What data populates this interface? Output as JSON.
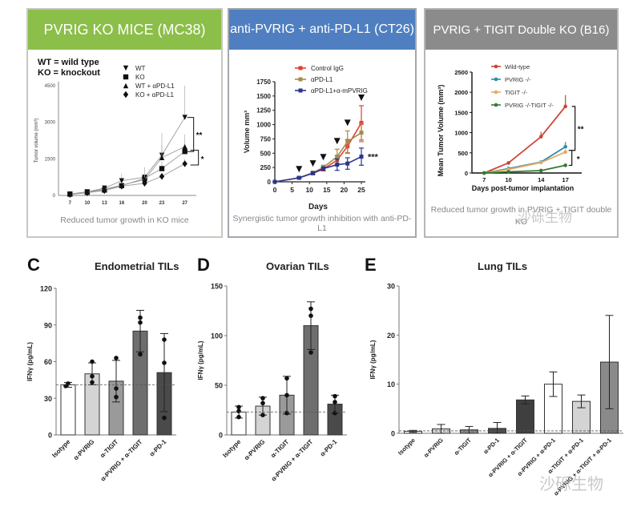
{
  "panels": {
    "p1": {
      "header": "PVRIG KO MICE (MC38)",
      "header_color": "#8cbe4a",
      "note_line1": "WT = wild type",
      "note_line2": "KO = knockout",
      "caption": "Reduced tumor growth in KO mice"
    },
    "p2": {
      "header": "anti-PVRIG + anti-PD-L1 (CT26)",
      "header_color": "#4f7fc0",
      "caption": "Synergistic tumor growth inhibition with anti-PD-L1"
    },
    "p3": {
      "header": "PVRIG + TIGIT Double KO (B16)",
      "header_color": "#8b8b8b",
      "caption_line1": "Reduced tumor growth in PVRIG + TIGIT double",
      "caption_line2": "KO"
    },
    "C": {
      "letter": "C",
      "title": "Endometrial TILs"
    },
    "D": {
      "letter": "D",
      "title": "Ovarian TILs"
    },
    "E": {
      "letter": "E",
      "title": "Lung TILs"
    }
  },
  "watermark": "沙砾生物",
  "chart_data": [
    {
      "id": "mc38",
      "type": "line",
      "title": "PVRIG KO MICE (MC38)",
      "xlabel": "Days post-tumor implantation",
      "ylabel": "Tumor volume (mm³)",
      "x": [
        7,
        10,
        13,
        16,
        20,
        23,
        27
      ],
      "xticks": [
        "7",
        "10",
        "13",
        "16",
        "20",
        "23",
        "27"
      ],
      "yticks": [
        "0",
        "1500",
        "3000",
        "4500"
      ],
      "ylim": [
        0,
        4500
      ],
      "series": [
        {
          "name": "WT",
          "marker": "▼",
          "values": [
            60,
            150,
            300,
            600,
            750,
            1650,
            3200
          ],
          "err": [
            30,
            60,
            80,
            300,
            400,
            900,
            1300
          ]
        },
        {
          "name": "KO",
          "marker": "■",
          "values": [
            50,
            130,
            220,
            400,
            700,
            1100,
            1800
          ],
          "err": [
            30,
            50,
            60,
            100,
            150,
            300,
            400
          ]
        },
        {
          "name": "WT + αPD-L1",
          "marker": "▲",
          "values": [
            55,
            140,
            260,
            420,
            650,
            1550,
            2000
          ],
          "err": [
            30,
            50,
            70,
            100,
            200,
            500,
            500
          ]
        },
        {
          "name": "KO + αPD-L1",
          "marker": "◆",
          "values": [
            40,
            110,
            200,
            380,
            500,
            780,
            1300
          ],
          "err": [
            20,
            40,
            50,
            80,
            100,
            150,
            200
          ]
        }
      ],
      "annotations": [
        "**",
        "*"
      ]
    },
    {
      "id": "ct26",
      "type": "line",
      "title": "anti-PVRIG + anti-PD-L1 (CT26)",
      "xlabel": "Days",
      "ylabel": "Volume mm³",
      "x": [
        0,
        7,
        11,
        14,
        18,
        21,
        25
      ],
      "xticks": [
        "0",
        "5",
        "10",
        "15",
        "20",
        "25"
      ],
      "yticks": [
        "0",
        "250",
        "500",
        "750",
        "1000",
        "1250",
        "1500",
        "1750"
      ],
      "ylim": [
        0,
        1750
      ],
      "dosing_days": [
        7,
        11,
        14,
        18,
        21,
        25
      ],
      "series": [
        {
          "name": "Control IgG",
          "color": "#e0412e",
          "values": [
            0,
            70,
            150,
            220,
            380,
            620,
            1030
          ],
          "err": [
            0,
            10,
            20,
            30,
            80,
            120,
            300
          ]
        },
        {
          "name": "αPD-L1",
          "color": "#a68a4e",
          "values": [
            0,
            70,
            160,
            250,
            440,
            700,
            860
          ],
          "err": [
            0,
            10,
            20,
            40,
            130,
            190,
            160
          ]
        },
        {
          "name": "αPD-L1+α-mPVRIG",
          "color": "#2a3590",
          "values": [
            0,
            70,
            150,
            230,
            300,
            320,
            440
          ],
          "err": [
            0,
            10,
            20,
            30,
            100,
            100,
            150
          ]
        }
      ],
      "annotations": [
        "***"
      ]
    },
    {
      "id": "b16",
      "type": "line",
      "title": "PVRIG + TIGIT Double KO (B16)",
      "xlabel": "Days post-tumor implantation",
      "ylabel": "Mean Tumor Volume (mm³)",
      "x": [
        7,
        10,
        14,
        17
      ],
      "xticks": [
        "7",
        "10",
        "14",
        "17"
      ],
      "yticks": [
        "0",
        "500",
        "1000",
        "1500",
        "2000",
        "2500"
      ],
      "ylim": [
        0,
        2500
      ],
      "series": [
        {
          "name": "Wild-type",
          "color": "#cc4436",
          "values": [
            0,
            250,
            900,
            1650
          ],
          "err": [
            0,
            30,
            120,
            280
          ]
        },
        {
          "name": "PVRIG -/-",
          "color": "#2b8fa3",
          "values": [
            0,
            110,
            270,
            650
          ],
          "err": [
            0,
            20,
            40,
            120
          ]
        },
        {
          "name": "TIGIT -/-",
          "color": "#e8a866",
          "values": [
            0,
            90,
            260,
            520
          ],
          "err": [
            0,
            20,
            30,
            60
          ]
        },
        {
          "name": "PVRIG -/-TIGIT -/-",
          "color": "#2e7d2e",
          "values": [
            0,
            30,
            60,
            190
          ],
          "err": [
            0,
            10,
            15,
            30
          ]
        }
      ],
      "annotations": [
        "**",
        "*"
      ]
    },
    {
      "id": "endometrial",
      "type": "bar",
      "title": "Endometrial TILs",
      "ylabel": "IFNγ (pg/mL)",
      "categories": [
        "Isotype",
        "α-PVRIG",
        "α-TIGIT",
        "α-PVRIG + α-TIGIT",
        "α-PD-1"
      ],
      "values": [
        41,
        50,
        44,
        85,
        51
      ],
      "err": [
        2,
        9,
        17,
        17,
        32
      ],
      "points": [
        [
          40,
          42
        ],
        [
          43,
          48,
          60
        ],
        [
          31,
          38,
          63
        ],
        [
          66,
          92,
          96
        ],
        [
          14,
          59,
          78
        ]
      ],
      "colors": [
        "#ffffff",
        "#d4d4d4",
        "#9a9a9a",
        "#6e6e6e",
        "#4a4a4a"
      ],
      "yticks": [
        "0",
        "30",
        "60",
        "90",
        "120"
      ],
      "ylim": [
        0,
        120
      ],
      "baseline": 41
    },
    {
      "id": "ovarian",
      "type": "bar",
      "title": "Ovarian TILs",
      "ylabel": "IFNγ (pg/mL)",
      "categories": [
        "Isotype",
        "α-PVRIG",
        "α-TIGIT",
        "α-PVRIG + α-TIGIT",
        "α-PD-1"
      ],
      "values": [
        23,
        29,
        40,
        110,
        31
      ],
      "err": [
        6,
        9,
        19,
        24,
        9
      ],
      "points": [
        [
          18,
          24,
          28
        ],
        [
          20,
          32,
          37
        ],
        [
          22,
          40,
          57
        ],
        [
          83,
          120,
          127
        ],
        [
          22,
          33,
          39
        ]
      ],
      "colors": [
        "#ffffff",
        "#d4d4d4",
        "#9a9a9a",
        "#6e6e6e",
        "#4a4a4a"
      ],
      "yticks": [
        "0",
        "50",
        "100",
        "150"
      ],
      "ylim": [
        0,
        150
      ],
      "baseline": 23
    },
    {
      "id": "lung",
      "type": "bar",
      "title": "Lung TILs",
      "ylabel": "IFNγ (pg/mL)",
      "categories": [
        "Isotype",
        "α-PVRIG",
        "α-TIGIT",
        "α-PD-1",
        "α-PVRIG + α-TIGIT",
        "α-PVRIG + α-PD-1",
        "α-TIGIT + α-PD-1",
        "α-PVRIG + α-TIGIT + α-PD-1"
      ],
      "values": [
        0.4,
        0.9,
        0.7,
        1.0,
        6.8,
        10.0,
        6.5,
        14.5
      ],
      "err": [
        0.2,
        0.9,
        0.7,
        1.2,
        0.8,
        2.5,
        1.3,
        9.5
      ],
      "colors": [
        "#ffffff",
        "#d4d4d4",
        "#8a8a8a",
        "#4a4a4a",
        "#3f3f3f",
        "#ffffff",
        "#d4d4d4",
        "#8a8a8a"
      ],
      "yticks": [
        "0",
        "10",
        "20",
        "30"
      ],
      "ylim": [
        0,
        30
      ],
      "baseline": 0.5
    }
  ]
}
